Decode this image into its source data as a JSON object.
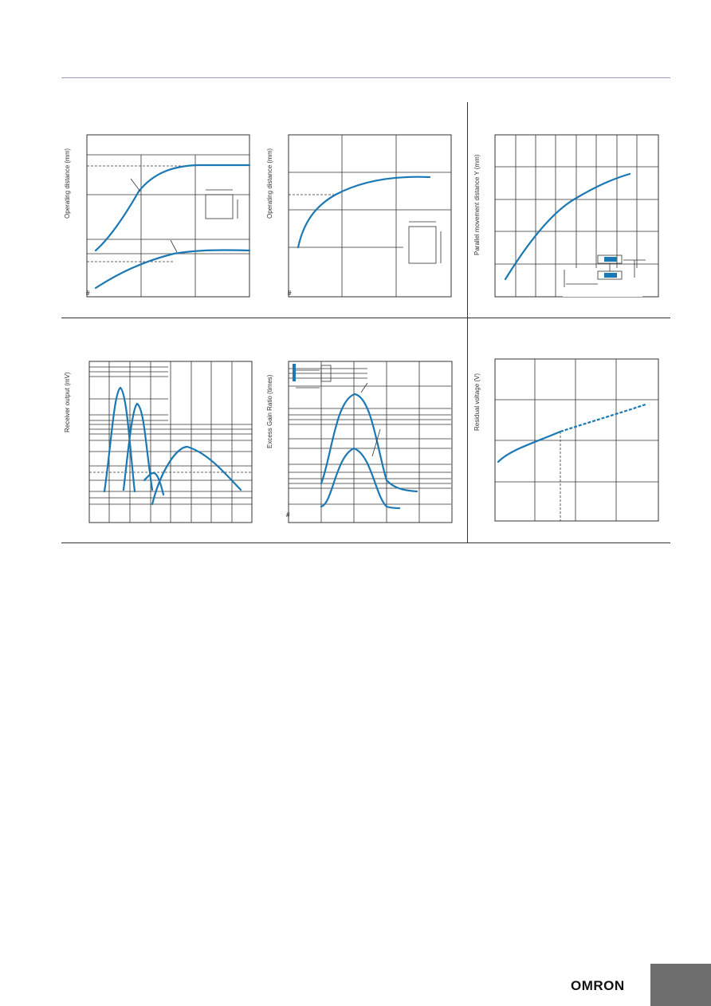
{
  "page": {
    "logo_text": "OMRON",
    "tab_color": "#6e6e6e",
    "rule_color": "#9a9ad0"
  },
  "chart_data": [
    {
      "type": "line",
      "ylabel": "Operating distance (mm)",
      "series": [
        {
          "x": [
            0.3,
            1.5,
            2.5,
            4.5,
            6.0
          ],
          "y": [
            3.0,
            4.6,
            6.0,
            6.4,
            6.4
          ]
        },
        {
          "x": [
            0.3,
            1.5,
            3.0,
            4.5,
            6.0
          ],
          "y": [
            0.2,
            0.9,
            1.4,
            1.5,
            1.5
          ]
        }
      ]
    },
    {
      "type": "line",
      "ylabel": "Operating distance (mm)",
      "series": [
        {
          "x": [
            0.2,
            0.6,
            1.2,
            2.0,
            2.6
          ],
          "y": [
            1.2,
            2.5,
            3.2,
            3.55,
            3.6
          ]
        }
      ]
    },
    {
      "type": "line",
      "ylabel": "Parallel movement distance Y (mm)",
      "series": [
        {
          "x": [
            0.5,
            2.0,
            4.0,
            6.5
          ],
          "y": [
            0.5,
            2.0,
            3.0,
            3.8
          ]
        }
      ]
    },
    {
      "type": "line",
      "ylabel": "Receiver output (mV)",
      "series": [
        {
          "x": [
            0.7,
            1.5,
            1.9
          ],
          "y": [
            0.35,
            0.95,
            0.35
          ]
        },
        {
          "x": [
            1.7,
            2.3,
            2.7
          ],
          "y": [
            0.35,
            0.8,
            0.35
          ]
        },
        {
          "x": [
            3.0,
            4.5,
            7.5
          ],
          "y": [
            0.3,
            0.6,
            0.4
          ]
        },
        {
          "x": [
            2.5,
            3.4
          ],
          "y": [
            0.32,
            0.5
          ]
        }
      ]
    },
    {
      "type": "line",
      "ylabel": "Excess Gain Ratio (times)",
      "series": [
        {
          "x": [
            1.0,
            2.0,
            3.0
          ],
          "y": [
            0.4,
            0.85,
            0.3
          ]
        },
        {
          "x": [
            1.0,
            2.0,
            3.0
          ],
          "y": [
            0.1,
            0.55,
            0.1
          ]
        }
      ]
    },
    {
      "type": "line",
      "ylabel": "Residual voltage (V)",
      "series": [
        {
          "x": [
            0.0,
            1.0,
            2.0,
            3.0,
            3.7
          ],
          "y": [
            1.45,
            1.9,
            2.3,
            2.65,
            2.9
          ]
        }
      ]
    }
  ]
}
